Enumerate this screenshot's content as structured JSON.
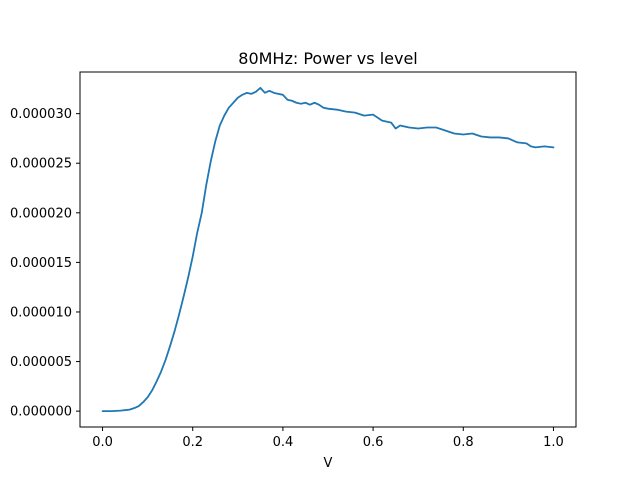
{
  "chart_data": {
    "type": "line",
    "title": "80MHz: Power vs level",
    "xlabel": "V",
    "ylabel": "",
    "xlim": [
      -0.05,
      1.05
    ],
    "ylim": [
      -1.6e-06,
      3.42e-05
    ],
    "xticks": [
      0.0,
      0.2,
      0.4,
      0.6,
      0.8,
      1.0
    ],
    "xtick_labels": [
      "0.0",
      "0.2",
      "0.4",
      "0.6",
      "0.8",
      "1.0"
    ],
    "yticks": [
      0.0,
      5e-06,
      1e-05,
      1.5e-05,
      2e-05,
      2.5e-05,
      3e-05
    ],
    "ytick_labels": [
      "0.000000",
      "0.000005",
      "0.000010",
      "0.000015",
      "0.000020",
      "0.000025",
      "0.000030"
    ],
    "grid": false,
    "legend": "none",
    "colors": {
      "line": "#1f77b4"
    },
    "series": [
      {
        "x": [
          0.0,
          0.02,
          0.04,
          0.06,
          0.07,
          0.08,
          0.09,
          0.1,
          0.11,
          0.12,
          0.13,
          0.14,
          0.15,
          0.16,
          0.17,
          0.18,
          0.19,
          0.2,
          0.21,
          0.22,
          0.23,
          0.24,
          0.25,
          0.26,
          0.27,
          0.28,
          0.29,
          0.3,
          0.31,
          0.32,
          0.33,
          0.34,
          0.35,
          0.36,
          0.37,
          0.38,
          0.39,
          0.4,
          0.41,
          0.42,
          0.43,
          0.44,
          0.45,
          0.46,
          0.47,
          0.48,
          0.49,
          0.5,
          0.52,
          0.54,
          0.56,
          0.58,
          0.6,
          0.62,
          0.64,
          0.65,
          0.66,
          0.68,
          0.7,
          0.72,
          0.74,
          0.76,
          0.78,
          0.8,
          0.82,
          0.84,
          0.86,
          0.88,
          0.9,
          0.92,
          0.94,
          0.95,
          0.96,
          0.98,
          1.0
        ],
        "y": [
          0.0,
          0.0,
          5e-08,
          1.5e-07,
          3e-07,
          5e-07,
          9e-07,
          1.4e-06,
          2.1e-06,
          3e-06,
          4e-06,
          5.2e-06,
          6.6e-06,
          8.1e-06,
          9.8e-06,
          1.16e-05,
          1.35e-05,
          1.56e-05,
          1.8e-05,
          2e-05,
          2.28e-05,
          2.52e-05,
          2.72e-05,
          2.88e-05,
          2.98e-05,
          3.06e-05,
          3.11e-05,
          3.16e-05,
          3.19e-05,
          3.21e-05,
          3.2e-05,
          3.22e-05,
          3.26e-05,
          3.21e-05,
          3.23e-05,
          3.21e-05,
          3.2e-05,
          3.19e-05,
          3.14e-05,
          3.13e-05,
          3.11e-05,
          3.1e-05,
          3.11e-05,
          3.09e-05,
          3.11e-05,
          3.09e-05,
          3.06e-05,
          3.05e-05,
          3.04e-05,
          3.02e-05,
          3.01e-05,
          2.98e-05,
          2.99e-05,
          2.93e-05,
          2.91e-05,
          2.85e-05,
          2.88e-05,
          2.86e-05,
          2.85e-05,
          2.86e-05,
          2.86e-05,
          2.83e-05,
          2.8e-05,
          2.79e-05,
          2.8e-05,
          2.77e-05,
          2.76e-05,
          2.76e-05,
          2.75e-05,
          2.71e-05,
          2.7e-05,
          2.67e-05,
          2.66e-05,
          2.67e-05,
          2.66e-05
        ]
      }
    ]
  }
}
